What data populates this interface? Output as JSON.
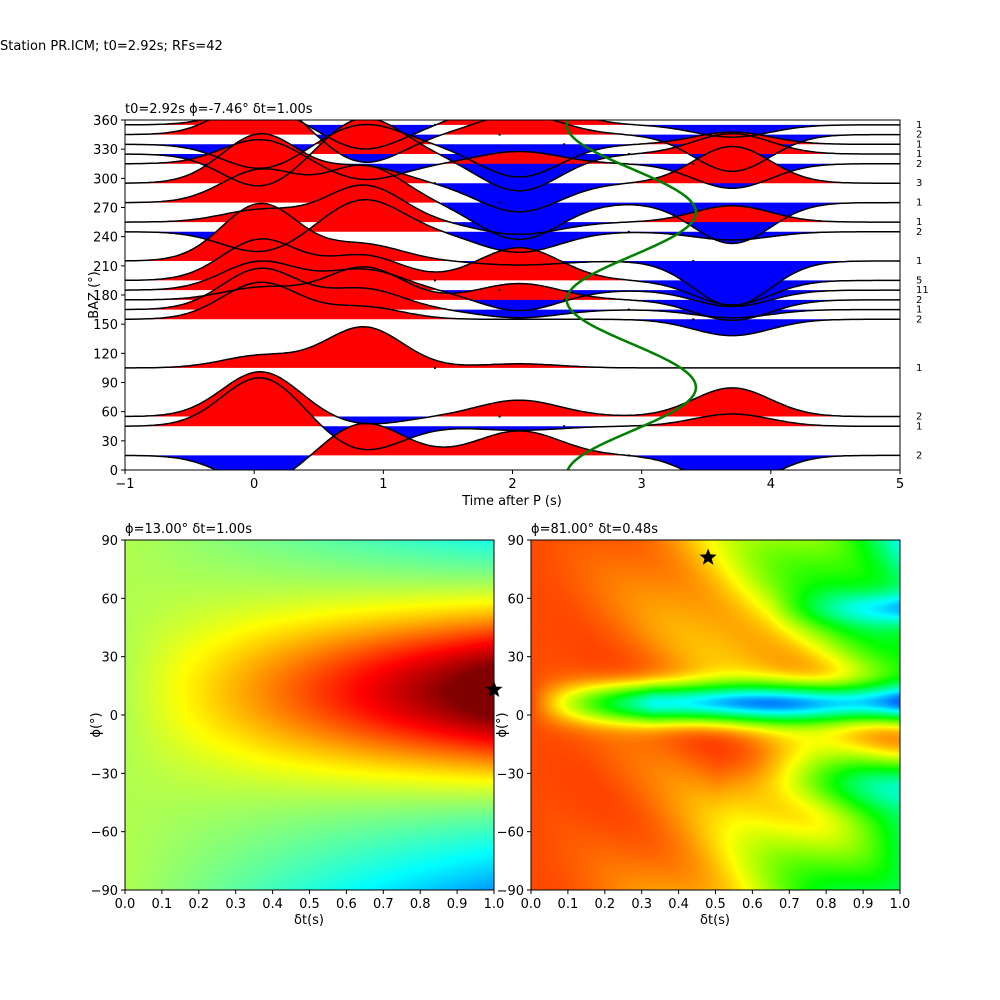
{
  "suptitle": "Station PR.ICM; t0=2.92s; RFs=42",
  "chart_data": [
    {
      "type": "line",
      "title": "t0=2.92s ϕ=-7.46° δt=1.00s",
      "xlabel": "Time after P (s)",
      "ylabel": "BAZ (°)",
      "xlim": [
        -1,
        5
      ],
      "ylim": [
        0,
        360
      ],
      "xticks": [
        "−1",
        "0",
        "1",
        "2",
        "3",
        "4",
        "5"
      ],
      "yticks": [
        "0",
        "30",
        "60",
        "90",
        "120",
        "150",
        "180",
        "210",
        "240",
        "270",
        "300",
        "330",
        "360"
      ],
      "fill_positive_color": "#ff0000",
      "fill_negative_color": "#0000ff",
      "trace_color": "#000000",
      "curve_color": "#008000",
      "bins": [
        {
          "baz": 355,
          "count": "1",
          "c": [
            0.4,
            -0.6,
            0.8,
            -0.3
          ]
        },
        {
          "baz": 345,
          "count": "2",
          "c": [
            0.9,
            -0.7,
            0.5,
            -0.9
          ]
        },
        {
          "baz": 335,
          "count": "1",
          "c": [
            -0.6,
            0.5,
            -0.8,
            0.3
          ]
        },
        {
          "baz": 325,
          "count": "1",
          "c": [
            -0.8,
            0.9,
            -0.9,
            0.5
          ]
        },
        {
          "baz": 315,
          "count": "2",
          "c": [
            0.6,
            -0.4,
            0.3,
            -0.6
          ]
        },
        {
          "baz": 295,
          "count": "3",
          "c": [
            1.2,
            0.4,
            -0.7,
            0.9
          ]
        },
        {
          "baz": 275,
          "count": "1",
          "c": [
            0.8,
            0.9,
            -0.9,
            -1.0
          ]
        },
        {
          "baz": 255,
          "count": "1",
          "c": [
            0.3,
            0.9,
            -0.3,
            0.4
          ]
        },
        {
          "baz": 245,
          "count": "2",
          "c": [
            -0.5,
            0.8,
            -0.5,
            -0.2
          ]
        },
        {
          "baz": 215,
          "count": "1",
          "c": [
            1.4,
            0.4,
            -0.1,
            -1.1
          ]
        },
        {
          "baz": 195,
          "count": "5",
          "c": [
            1.0,
            0.6,
            0.8,
            -0.6
          ]
        },
        {
          "baz": 185,
          "count": "11",
          "c": [
            0.7,
            0.5,
            -0.5,
            -0.4
          ]
        },
        {
          "baz": 175,
          "count": "2",
          "c": [
            0.3,
            0.8,
            0.4,
            -0.5
          ]
        },
        {
          "baz": 165,
          "count": "1",
          "c": [
            1.0,
            0.5,
            -0.2,
            -0.2
          ]
        },
        {
          "baz": 155,
          "count": "2",
          "c": [
            0.9,
            0.3,
            0.0,
            -0.4
          ]
        },
        {
          "baz": 105,
          "count": "1",
          "c": [
            0.3,
            1.0,
            0.1,
            0.0
          ]
        },
        {
          "baz": 55,
          "count": "2",
          "c": [
            1.1,
            -0.2,
            0.4,
            0.7
          ]
        },
        {
          "baz": 45,
          "count": "1",
          "c": [
            1.2,
            -0.6,
            -0.1,
            0.3
          ]
        },
        {
          "baz": 15,
          "count": "2",
          "c": [
            -0.7,
            0.8,
            0.6,
            -0.8
          ]
        }
      ]
    },
    {
      "type": "heatmap",
      "title": "ϕ=13.00° δt=1.00s",
      "xlabel": "δt(s)",
      "ylabel": "ϕ(°)",
      "xlim": [
        0,
        1
      ],
      "ylim": [
        -90,
        90
      ],
      "xticks": [
        "0.0",
        "0.1",
        "0.2",
        "0.3",
        "0.4",
        "0.5",
        "0.6",
        "0.7",
        "0.8",
        "0.9",
        "1.0"
      ],
      "yticks": [
        "−90",
        "−60",
        "−30",
        "0",
        "30",
        "60",
        "90"
      ],
      "best": {
        "dt": 1.0,
        "phi": 13
      },
      "colormap": "jet"
    },
    {
      "type": "heatmap",
      "title": "ϕ=81.00° δt=0.48s",
      "xlabel": "δt(s)",
      "ylabel": "ϕ(°)",
      "xlim": [
        0,
        1
      ],
      "ylim": [
        -90,
        90
      ],
      "xticks": [
        "0.0",
        "0.1",
        "0.2",
        "0.3",
        "0.4",
        "0.5",
        "0.6",
        "0.7",
        "0.8",
        "0.9",
        "1.0"
      ],
      "yticks": [
        "−90",
        "−60",
        "−30",
        "0",
        "30",
        "60",
        "90"
      ],
      "best": {
        "dt": 0.48,
        "phi": 81
      },
      "colormap": "gist_rainbow"
    }
  ]
}
